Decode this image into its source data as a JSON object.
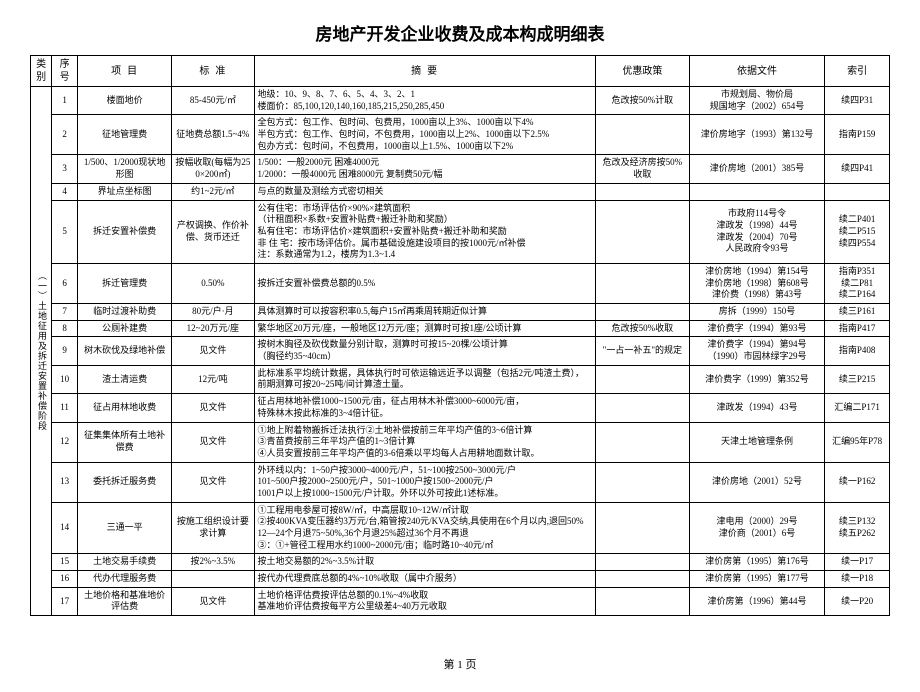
{
  "title": "房地产开发企业收费及成本构成明细表",
  "footer": "第 1 页",
  "headers": {
    "cat": "类别",
    "idx": "序号",
    "item": "项目",
    "std": "标准",
    "desc": "摘要",
    "pol": "优惠政策",
    "doc": "依据文件",
    "ref": "索引"
  },
  "category": "（一）土地征用及拆迁安置补偿阶段",
  "rows": [
    {
      "idx": "1",
      "item": "楼面地价",
      "std": "85-450元/㎡",
      "desc": "地级：10、9、8、7、6、5、4、3、2、1\n楼面价：85,100,120,140,160,185,215,250,285,450",
      "pol": "危改按50%计取",
      "doc": "市规划局、物价局\n规国地字（2002）654号",
      "ref": "续四P31"
    },
    {
      "idx": "2",
      "item": "征地管理费",
      "std": "征地费总额1.5~4%",
      "desc": "全包方式：包工作、包时间、包费用，1000亩以上3%、1000亩以下4%\n半包方式：包工作、包时间，不包费用，1000亩以上2%、1000亩以下2.5%\n包办方式：包时间，不包费用，1000亩以上1.5%、1000亩以下2%",
      "pol": "",
      "doc": "津价房地字（1993）第132号",
      "ref": "指南P159"
    },
    {
      "idx": "3",
      "item": "1/500、1/2000现状地形图",
      "std": "按幅收取(每幅为250×200㎡)",
      "desc": "1/500：一般2000元 困难4000元\n1/2000：一般4000元 困难8000元 复制费50元/幅",
      "pol": "危改及经济房按50%收取",
      "doc": "津价房地（2001）385号",
      "ref": "续四P41"
    },
    {
      "idx": "4",
      "item": "界址点坐标图",
      "std": "约1~2元/㎡",
      "desc": "与点的数量及测绘方式密切相关",
      "pol": "",
      "doc": "",
      "ref": ""
    },
    {
      "idx": "5",
      "item": "拆迁安置补偿费",
      "std": "产权调换、作价补偿、货币还迁",
      "desc": "公有住宅：市场评估价×90%×建筑面积\n（计租面积×系数+安置补贴费+搬迁补助和奖励）\n私有住宅：市场评估价×建筑面积+安置补贴费+搬迁补助和奖励\n非 住 宅：按市场评估价。属市基础设施建设项目的按1000元/㎡补偿\n注：系数通常为1.2，楼房为1.3~1.4",
      "pol": "",
      "doc": "市政府114号令\n津政发（1998）44号\n津政发（2004）70号\n人民政府令93号",
      "ref": "续二P401\n续二P515\n\n续四P554"
    },
    {
      "idx": "6",
      "item": "拆迁管理费",
      "std": "0.50%",
      "desc": "按拆迁安置补偿费总额的0.5%",
      "pol": "",
      "doc": "津价房地（1994）第154号\n津价房地（1998）第608号\n津价费（1998）第43号",
      "ref": "指南P351\n续二P81\n续二P164"
    },
    {
      "idx": "7",
      "item": "临时过渡补助费",
      "std": "80元/户·月",
      "desc": "具体测算时可以按容积率0.5,每户15㎡再乘周转期近似计算",
      "pol": "",
      "doc": "房拆（1999）150号",
      "ref": "续三P161"
    },
    {
      "idx": "8",
      "item": "公厕补建费",
      "std": "12~20万元/座",
      "desc": "繁华地区20万元/座，一般地区12万元/座；测算时可按1座/公顷计算",
      "pol": "危改按50%收取",
      "doc": "津价费字（1994）第93号",
      "ref": "指南P417"
    },
    {
      "idx": "9",
      "item": "树木砍伐及绿地补偿",
      "std": "见文件",
      "desc": "按树木胸径及砍伐数量分别计取，测算时可按15~20棵/公顷计算\n（胸径约35~40cm）",
      "pol": "\"一占一补五\"的规定",
      "doc": "津价费字（1994）第94号\n（1990）市园林绿字29号",
      "ref": "指南P408"
    },
    {
      "idx": "10",
      "item": "渣土清运费",
      "std": "12元/吨",
      "desc": "此标准系平均统计数据，具体执行时可依运输远近予以调整（包括2元/吨渣土费），前期测算可按20~25吨/间计算渣土量。",
      "pol": "",
      "doc": "津价费字（1999）第352号",
      "ref": "续三P215"
    },
    {
      "idx": "11",
      "item": "征占用林地收费",
      "std": "见文件",
      "desc": "征占用林地补偿1000~1500元/亩，征占用林木补偿3000~6000元/亩，\n特殊林木按此标准的3~4倍计征。",
      "pol": "",
      "doc": "津政发（1994）43号",
      "ref": "汇编二P171"
    },
    {
      "idx": "12",
      "item": "征集集体所有土地补偿费",
      "std": "见文件",
      "desc": "①地上附着物搬拆迁法执行②土地补偿按前三年平均产值的3~6倍计算\n③青苗费按前三年平均产值的1~3倍计算\n④人员安置按前三年平均产值的3-6倍乘以平均每人占用耕地面数计取。",
      "pol": "",
      "doc": "天津土地管理条例",
      "ref": "汇编95年P78"
    },
    {
      "idx": "13",
      "item": "委托拆迁服务费",
      "std": "见文件",
      "desc": "外环线以内：1~50户按3000~4000元/户，51~100按2500~3000元/户\n101~500户按2000~2500元/户，501~1000户按1500~2000元/户\n1001户以上按1000~1500元/户计取。外环以外可按此1述标准。",
      "pol": "",
      "doc": "津价房地（2001）52号",
      "ref": "续一P162"
    },
    {
      "idx": "14",
      "item": "三通一平",
      "std": "按施工组织设计要求计算",
      "desc": "①工程用电参屋可按8W/㎡，中高层取10~12W/㎡计取\n②按400KVA变压器约3万元/台,箱管按240元/KVA交纳,具使用在6个月以内,退回50%\n12—24个月退75~50%,36个月退25%超过36个月不再退\n③：①+管径工程用水约1000~2000元/亩；临时路10~40元/㎡",
      "pol": "",
      "doc": "津电用（2000）29号\n津价商（2001）6号",
      "ref": "续三P132\n续五P262"
    },
    {
      "idx": "15",
      "item": "土地交易手续费",
      "std": "按2%~3.5%",
      "desc": "按土地交易额的2%~3.5%计取",
      "pol": "",
      "doc": "津价房第（1995）第176号",
      "ref": "续一P17"
    },
    {
      "idx": "16",
      "item": "代办代理服务费",
      "std": "",
      "desc": "按代办代理费底总额的4%~10%收取（属中介服务）",
      "pol": "",
      "doc": "津价房第（1995）第177号",
      "ref": "续一P18"
    },
    {
      "idx": "17",
      "item": "土地价格和基准地价评估费",
      "std": "见文件",
      "desc": "土地价格评估费按评估总额的0.1%~4%收取\n基准地价评估费按每平方公里级差4~40万元收取",
      "pol": "",
      "doc": "津价房第（1996）第44号",
      "ref": "续一P20"
    }
  ]
}
